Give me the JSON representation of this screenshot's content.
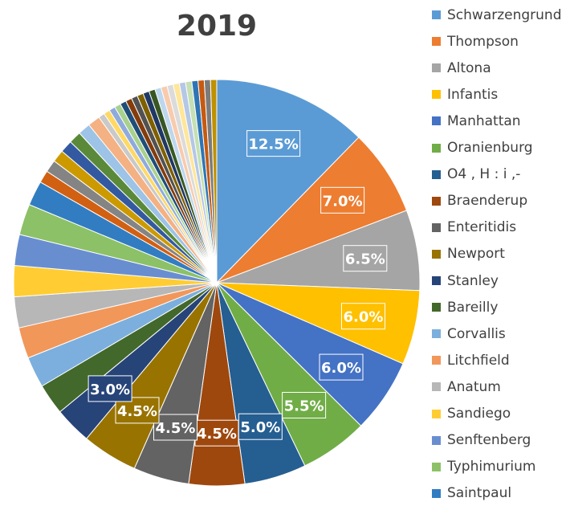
{
  "chart_data": {
    "type": "pie",
    "title": "2019",
    "legend_position": "right",
    "series_hidden_in_legend_count": 27,
    "slices": [
      {
        "name": "Schwarzengrund",
        "value": 12.5,
        "color": "#5B9BD5",
        "label": "12.5%"
      },
      {
        "name": "Thompson",
        "value": 7.0,
        "color": "#ED7D31",
        "label": "7.0%"
      },
      {
        "name": "Altona",
        "value": 6.5,
        "color": "#A5A5A5",
        "label": "6.5%"
      },
      {
        "name": "Infantis",
        "value": 6.0,
        "color": "#FFC000",
        "label": "6.0%"
      },
      {
        "name": "Manhattan",
        "value": 6.0,
        "color": "#4472C4",
        "label": "6.0%"
      },
      {
        "name": "Oranienburg",
        "value": 5.5,
        "color": "#70AD47",
        "label": "5.5%"
      },
      {
        "name": "O4 , H : i ,-",
        "value": 5.0,
        "color": "#255E91",
        "label": "5.0%"
      },
      {
        "name": "Braenderup",
        "value": 4.5,
        "color": "#9E480E",
        "label": "4.5%"
      },
      {
        "name": "Enteritidis",
        "value": 4.5,
        "color": "#636363",
        "label": "4.5%"
      },
      {
        "name": "Newport",
        "value": 4.5,
        "color": "#997300",
        "label": "4.5%"
      },
      {
        "name": "Stanley",
        "value": 3.0,
        "color": "#264478",
        "label": "3.0%"
      },
      {
        "name": "Bareilly",
        "value": 2.5,
        "color": "#43682B",
        "label": ""
      },
      {
        "name": "Corvallis",
        "value": 2.5,
        "color": "#7CAFDD",
        "label": ""
      },
      {
        "name": "Litchfield",
        "value": 2.5,
        "color": "#F1975A",
        "label": ""
      },
      {
        "name": "Anatum",
        "value": 2.5,
        "color": "#B7B7B7",
        "label": ""
      },
      {
        "name": "Sandiego",
        "value": 2.5,
        "color": "#FFCD33",
        "label": ""
      },
      {
        "name": "Senftenberg",
        "value": 2.5,
        "color": "#698ED0",
        "label": ""
      },
      {
        "name": "Typhimurium",
        "value": 2.5,
        "color": "#8CC168",
        "label": ""
      },
      {
        "name": "Saintpaul",
        "value": 2.0,
        "color": "#327DC2",
        "label": ""
      },
      {
        "name": "",
        "value": 1.0,
        "color": "#D26012",
        "label": ""
      },
      {
        "name": "",
        "value": 1.0,
        "color": "#848484",
        "label": ""
      },
      {
        "name": "",
        "value": 1.0,
        "color": "#CC9A00",
        "label": ""
      },
      {
        "name": "",
        "value": 1.0,
        "color": "#335AA1",
        "label": ""
      },
      {
        "name": "",
        "value": 1.0,
        "color": "#5A8A39",
        "label": ""
      },
      {
        "name": "",
        "value": 1.0,
        "color": "#9DC3E6",
        "label": ""
      },
      {
        "name": "",
        "value": 1.0,
        "color": "#F4B183",
        "label": ""
      },
      {
        "name": "",
        "value": 0.5,
        "color": "#C9C9C9",
        "label": ""
      },
      {
        "name": "",
        "value": 0.5,
        "color": "#FFD966",
        "label": ""
      },
      {
        "name": "",
        "value": 0.5,
        "color": "#8FAADC",
        "label": ""
      },
      {
        "name": "",
        "value": 0.5,
        "color": "#A9D18E",
        "label": ""
      },
      {
        "name": "",
        "value": 0.5,
        "color": "#1F4E79",
        "label": ""
      },
      {
        "name": "",
        "value": 0.5,
        "color": "#843C0C",
        "label": ""
      },
      {
        "name": "",
        "value": 0.5,
        "color": "#525252",
        "label": ""
      },
      {
        "name": "",
        "value": 0.5,
        "color": "#7F6000",
        "label": ""
      },
      {
        "name": "",
        "value": 0.5,
        "color": "#203864",
        "label": ""
      },
      {
        "name": "",
        "value": 0.5,
        "color": "#385723",
        "label": ""
      },
      {
        "name": "",
        "value": 0.5,
        "color": "#BDD7EE",
        "label": ""
      },
      {
        "name": "",
        "value": 0.5,
        "color": "#F8CBAD",
        "label": ""
      },
      {
        "name": "",
        "value": 0.5,
        "color": "#DBDBDB",
        "label": ""
      },
      {
        "name": "",
        "value": 0.5,
        "color": "#FFE699",
        "label": ""
      },
      {
        "name": "",
        "value": 0.5,
        "color": "#B4C7E7",
        "label": ""
      },
      {
        "name": "",
        "value": 0.5,
        "color": "#C5E0B4",
        "label": ""
      },
      {
        "name": "",
        "value": 0.5,
        "color": "#2E75B6",
        "label": ""
      },
      {
        "name": "",
        "value": 0.5,
        "color": "#C55A11",
        "label": ""
      },
      {
        "name": "",
        "value": 0.5,
        "color": "#7B7B7B",
        "label": ""
      },
      {
        "name": "",
        "value": 0.5,
        "color": "#BF9000",
        "label": ""
      }
    ]
  }
}
